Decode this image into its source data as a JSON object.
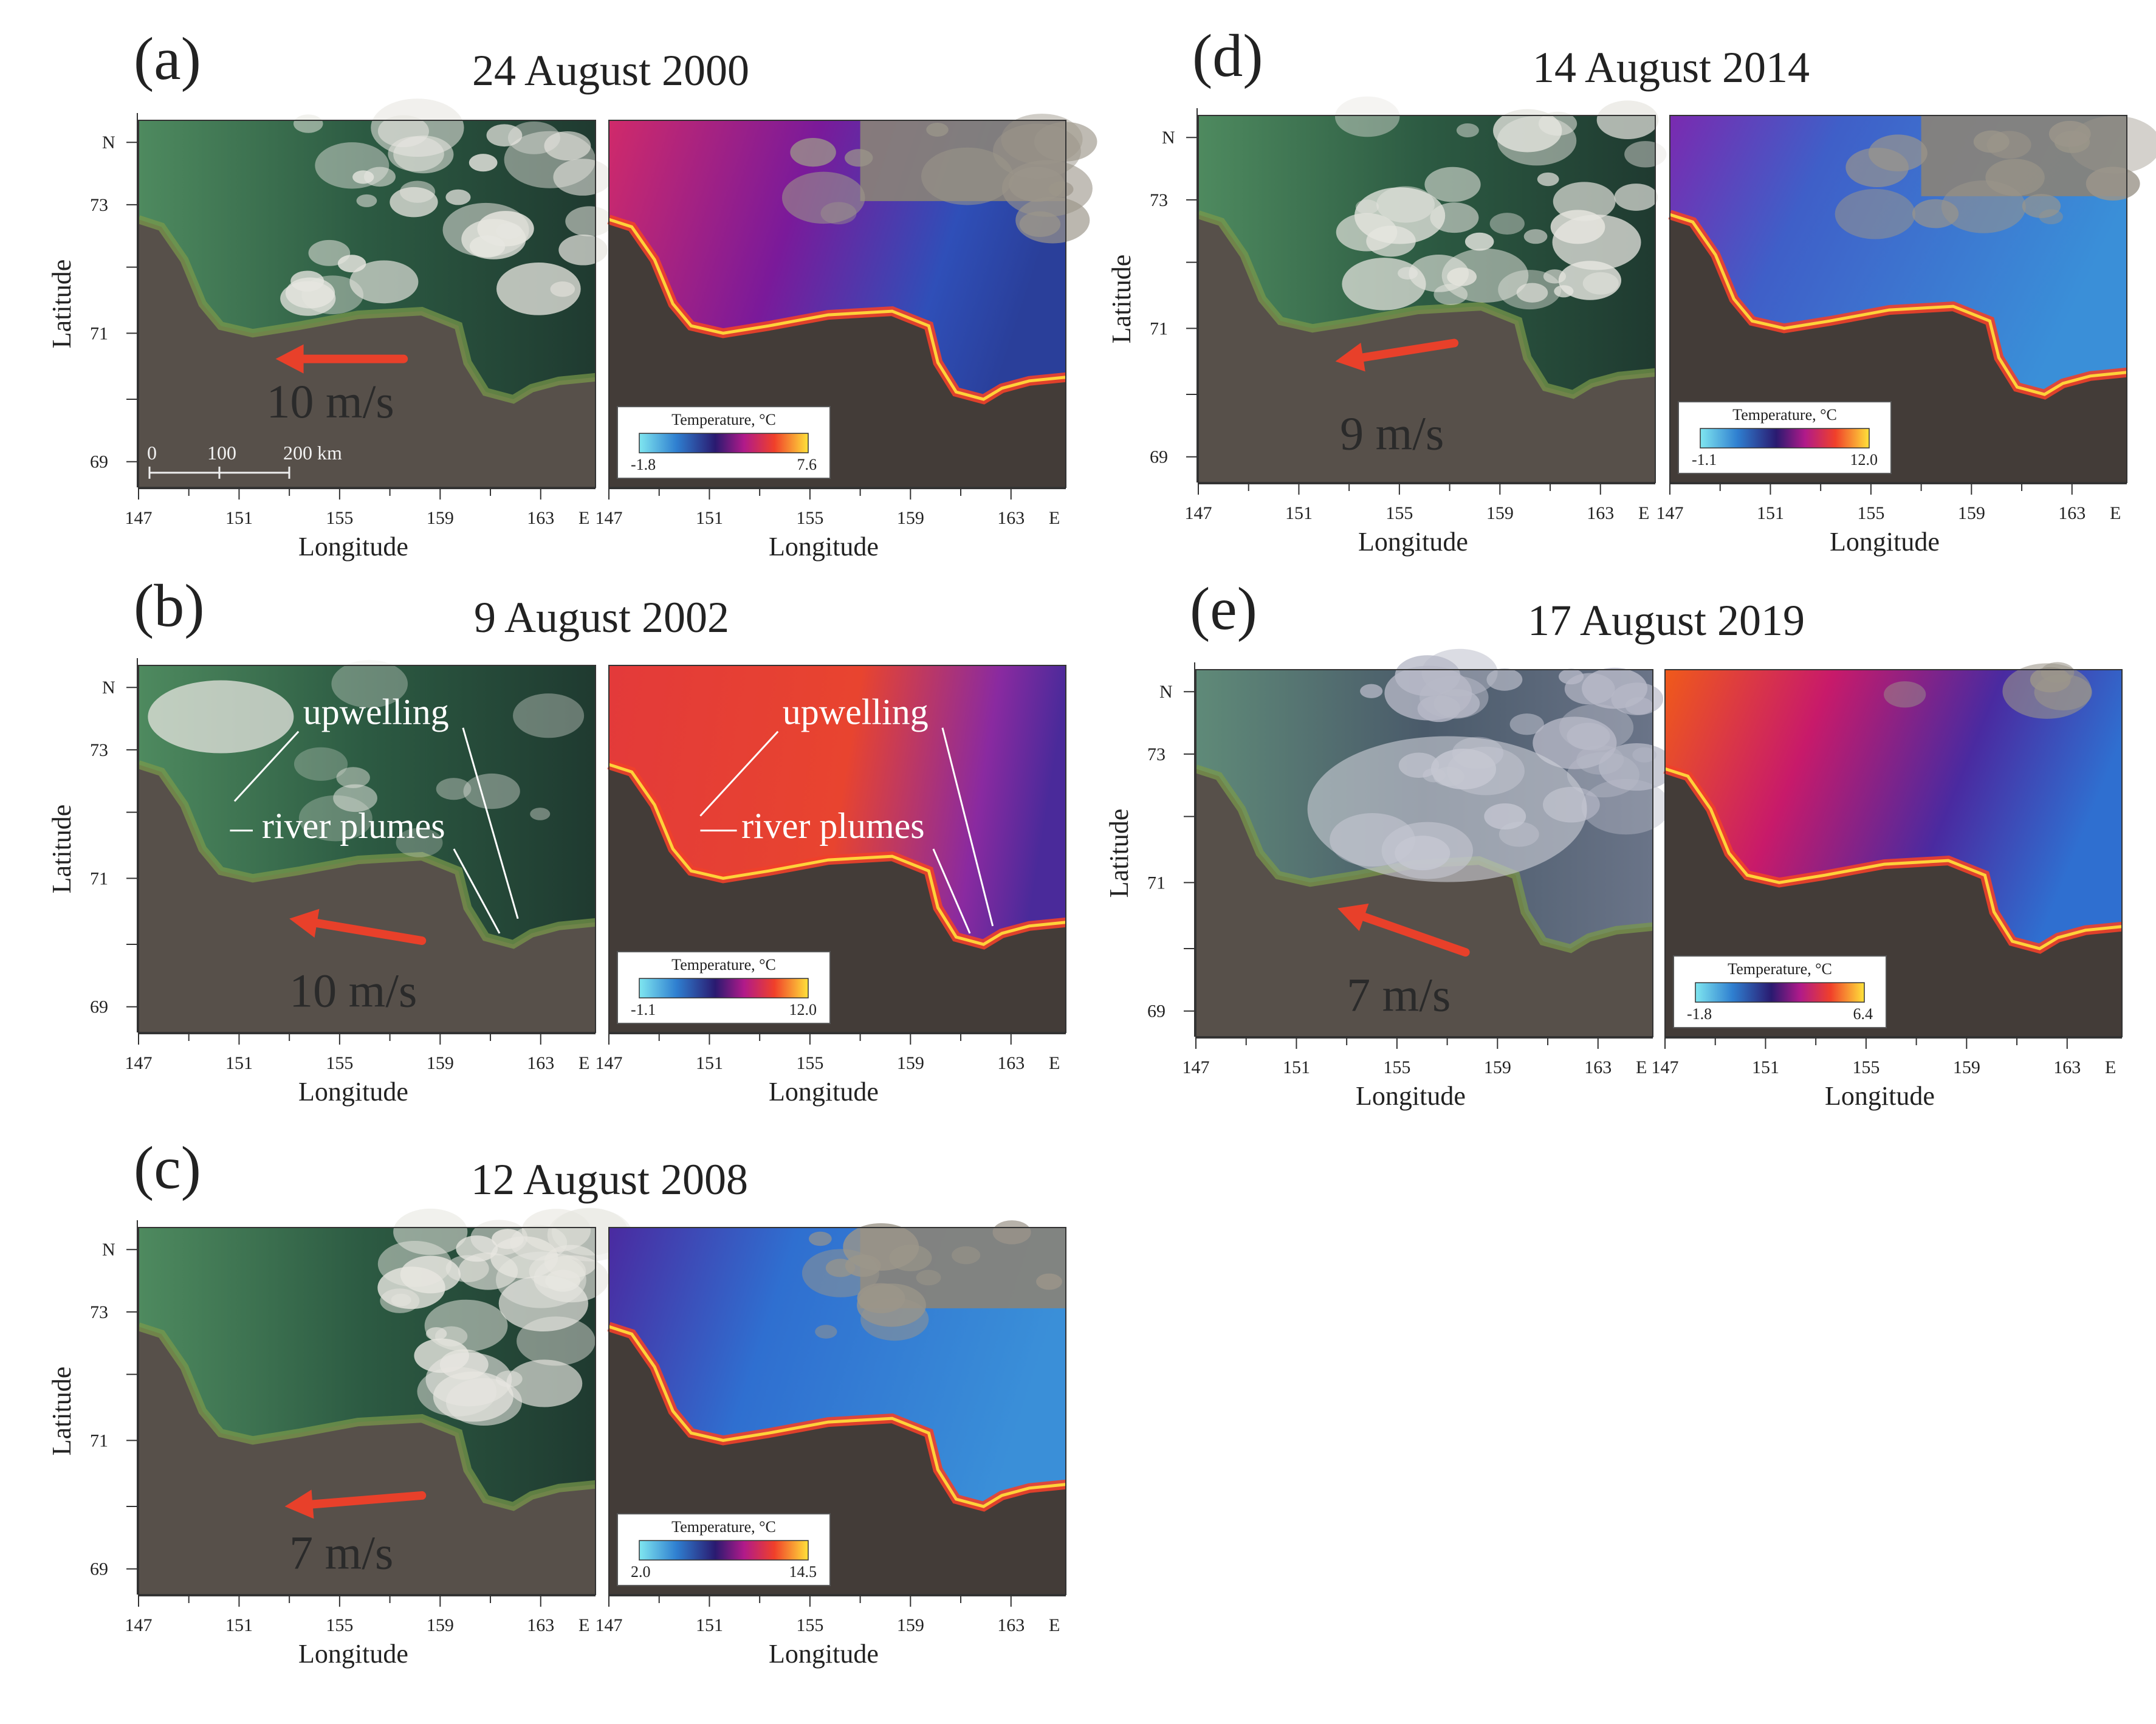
{
  "axes": {
    "ylabel": "Latitude",
    "xlabel": "Longitude",
    "north_label": "N",
    "east_label": "E",
    "lat_ticks": [
      "73",
      "71",
      "69"
    ],
    "lon_ticks": [
      "147",
      "151",
      "155",
      "159",
      "163"
    ]
  },
  "colorbar_title": "Temperature, °C",
  "scale_bar": {
    "labels": [
      "0",
      "100",
      "200 km"
    ]
  },
  "panels": [
    {
      "letter": "(a)",
      "date": "24 August 2000",
      "wind": "10 m/s",
      "cbar_min": "-1.8",
      "cbar_max": "7.6",
      "annotations": []
    },
    {
      "letter": "(b)",
      "date": "9 August 2002",
      "wind": "10 m/s",
      "cbar_min": "-1.1",
      "cbar_max": "12.0",
      "annotations": [
        "upwelling",
        "river plumes"
      ]
    },
    {
      "letter": "(c)",
      "date": "12 August 2008",
      "wind": "7 m/s",
      "cbar_min": "2.0",
      "cbar_max": "14.5",
      "annotations": []
    },
    {
      "letter": "(d)",
      "date": "14 August 2014",
      "wind": "9 m/s",
      "cbar_min": "-1.1",
      "cbar_max": "12.0",
      "annotations": []
    },
    {
      "letter": "(e)",
      "date": "17 August 2019",
      "wind": "7 m/s",
      "cbar_min": "-1.8",
      "cbar_max": "6.4",
      "annotations": []
    }
  ],
  "colors": {
    "land": "#57504a",
    "sea_green": "#3f7a55",
    "sea_dark": "#22392f",
    "cloud": "#e7e6e0",
    "arrow": "#e8402a",
    "sst_cold": "#3b8fd8",
    "sst_mid": "#d8207a",
    "sst_warm": "#ffd23a"
  }
}
